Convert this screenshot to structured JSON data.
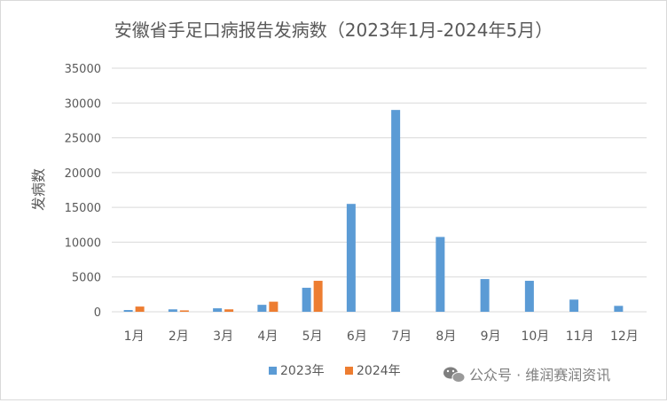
{
  "chart_data": {
    "type": "bar",
    "title": "安徽省手足口病报告发病数（2023年1月-2024年5月）",
    "xlabel": "",
    "ylabel": "发病数",
    "categories": [
      "1月",
      "2月",
      "3月",
      "4月",
      "5月",
      "6月",
      "7月",
      "8月",
      "9月",
      "10月",
      "11月",
      "12月"
    ],
    "ylim": [
      0,
      35000
    ],
    "yticks": [
      0,
      5000,
      10000,
      15000,
      20000,
      25000,
      30000,
      35000
    ],
    "grid": true,
    "legend_position": "bottom",
    "series": [
      {
        "name": "2023年",
        "color": "#5b9bd5",
        "values": [
          250,
          350,
          500,
          1000,
          3450,
          15500,
          29000,
          10750,
          4700,
          4450,
          1750,
          850
        ]
      },
      {
        "name": "2024年",
        "color": "#ed7d31",
        "values": [
          750,
          200,
          350,
          1450,
          4450,
          null,
          null,
          null,
          null,
          null,
          null,
          null
        ]
      }
    ]
  },
  "watermark": {
    "text": "公众号 · 维润赛润资讯",
    "icon": "wechat-icon"
  }
}
